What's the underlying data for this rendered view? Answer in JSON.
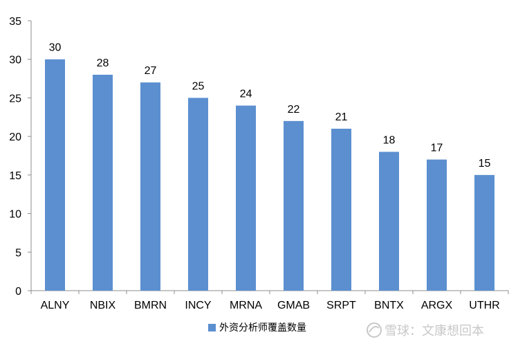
{
  "chart_data": {
    "type": "bar",
    "categories": [
      "ALNY",
      "NBIX",
      "BMRN",
      "INCY",
      "MRNA",
      "GMAB",
      "SRPT",
      "BNTX",
      "ARGX",
      "UTHR"
    ],
    "series": [
      {
        "name": "外资分析师覆盖数量",
        "values": [
          30,
          28,
          27,
          25,
          24,
          22,
          21,
          18,
          17,
          15
        ]
      }
    ],
    "title": "",
    "xlabel": "",
    "ylabel": "",
    "ylim": [
      0,
      35
    ],
    "yticks": [
      0,
      5,
      10,
      15,
      20,
      25,
      30,
      35
    ],
    "grid": false,
    "legend_position": "bottom-center",
    "data_labels": true,
    "bar_color": "#5b8fd0"
  },
  "watermark": {
    "text": "雪球：文康想回本"
  }
}
